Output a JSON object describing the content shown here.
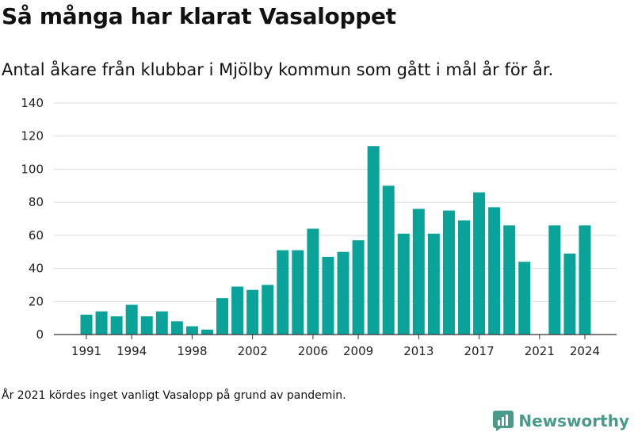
{
  "header": {
    "title": "Så många har klarat Vasaloppet",
    "subtitle": "Antal åkare från klubbar i Mjölby kommun som gått i mål år för år."
  },
  "footer": {
    "note": "År 2021 kördes inget vanligt Vasalopp på grund av pandemin.",
    "brand": "Newsworthy"
  },
  "colors": {
    "bar": "#0aa39a",
    "grid": "#d9d9d9",
    "axis": "#333333",
    "brand": "#4a9a8c"
  },
  "icons": {
    "brand": "newsworthy-logo-icon"
  },
  "chart_data": {
    "type": "bar",
    "title": "Så många har klarat Vasaloppet",
    "x": [
      1991,
      1992,
      1993,
      1994,
      1995,
      1996,
      1997,
      1998,
      1999,
      2000,
      2001,
      2002,
      2003,
      2004,
      2005,
      2006,
      2007,
      2008,
      2009,
      2010,
      2011,
      2012,
      2013,
      2014,
      2015,
      2016,
      2017,
      2018,
      2019,
      2020,
      2021,
      2022,
      2023,
      2024
    ],
    "values": [
      12,
      14,
      11,
      18,
      11,
      14,
      8,
      5,
      3,
      22,
      29,
      27,
      30,
      51,
      51,
      64,
      47,
      50,
      57,
      114,
      90,
      61,
      76,
      61,
      75,
      69,
      86,
      77,
      66,
      44,
      0,
      66,
      49,
      66
    ],
    "x_tick_labels": [
      "1991",
      "1994",
      "1998",
      "2002",
      "2006",
      "2009",
      "2013",
      "2017",
      "2021",
      "2024"
    ],
    "y_ticks": [
      0,
      20,
      40,
      60,
      80,
      100,
      120,
      140
    ],
    "ylim": [
      0,
      140
    ],
    "xlabel": "",
    "ylabel": "",
    "grid": true
  }
}
